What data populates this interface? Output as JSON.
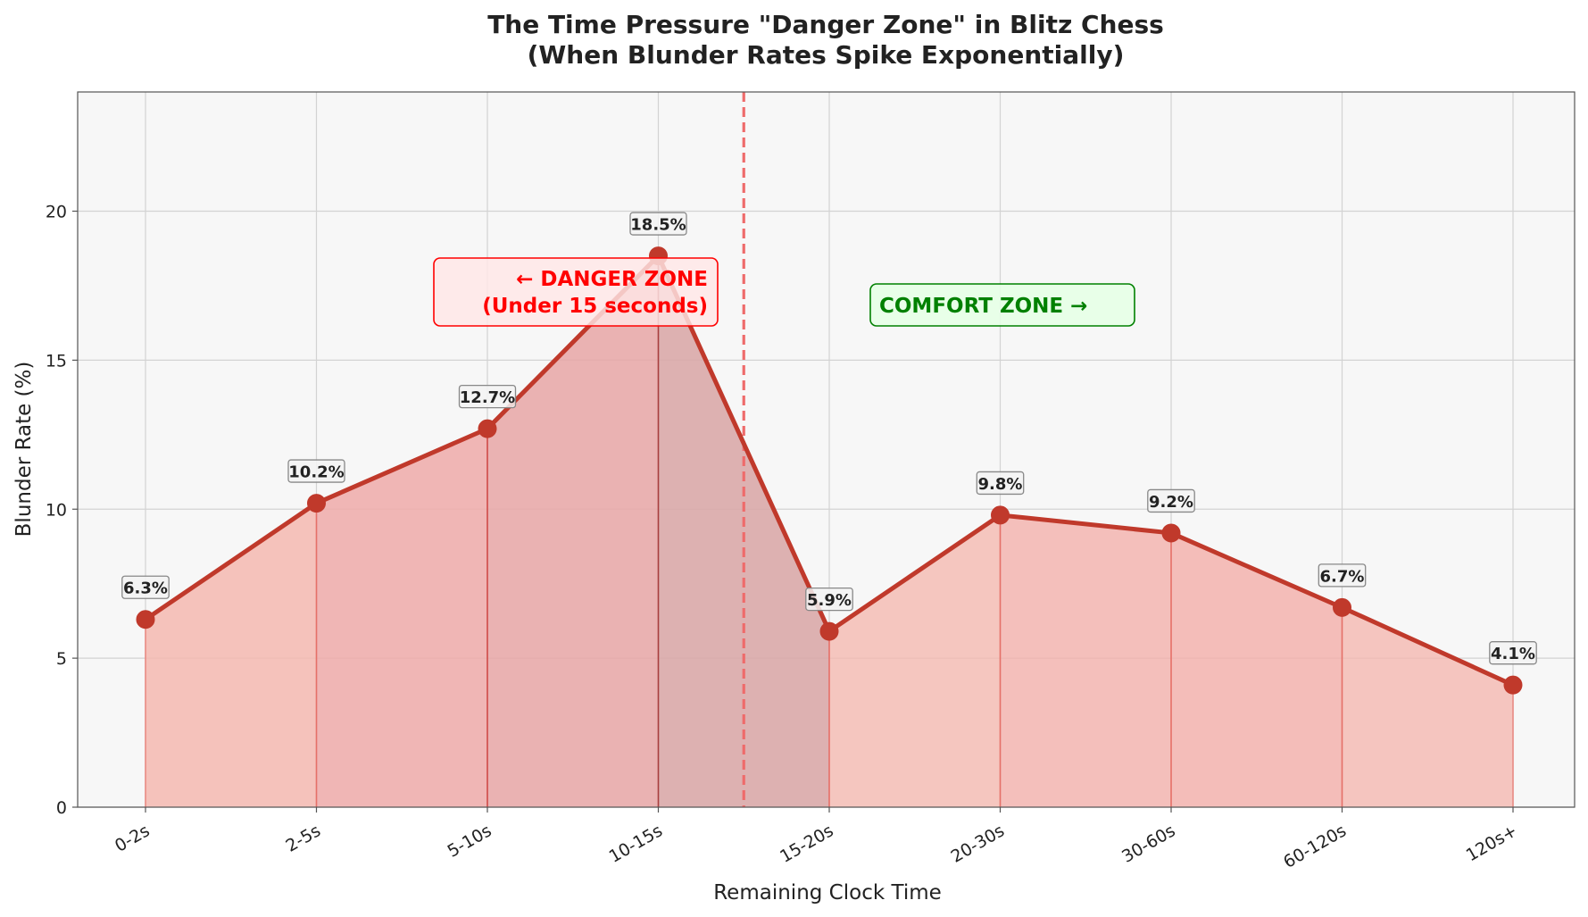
{
  "chart_data": {
    "type": "line",
    "title_line1": "The Time Pressure \"Danger Zone\" in Blitz Chess",
    "title_line2": "(When Blunder Rates Spike Exponentially)",
    "xlabel": "Remaining Clock Time",
    "ylabel": "Blunder Rate (%)",
    "categories": [
      "0-2s",
      "2-5s",
      "5-10s",
      "10-15s",
      "15-20s",
      "20-30s",
      "30-60s",
      "60-120s",
      "120s+"
    ],
    "values": [
      6.3,
      10.2,
      12.7,
      18.5,
      5.9,
      9.8,
      9.2,
      6.7,
      4.1
    ],
    "value_labels": [
      "6.3%",
      "10.2%",
      "12.7%",
      "18.5%",
      "5.9%",
      "9.8%",
      "9.2%",
      "6.7%",
      "4.1%"
    ],
    "ylim": [
      0,
      24
    ],
    "yticks": [
      0,
      5,
      10,
      15,
      20
    ],
    "grid": true,
    "threshold_between": [
      "10-15s",
      "15-20s"
    ],
    "annotations": {
      "danger_line1": "← DANGER ZONE",
      "danger_line2": "(Under 15 seconds)",
      "comfort": "COMFORT ZONE →"
    },
    "colors": {
      "line": "#c0392b",
      "threshold": "#ee6b6b",
      "danger_text": "#ff0000",
      "comfort_text": "#008000",
      "plot_bg": "#f7f7f7"
    }
  }
}
